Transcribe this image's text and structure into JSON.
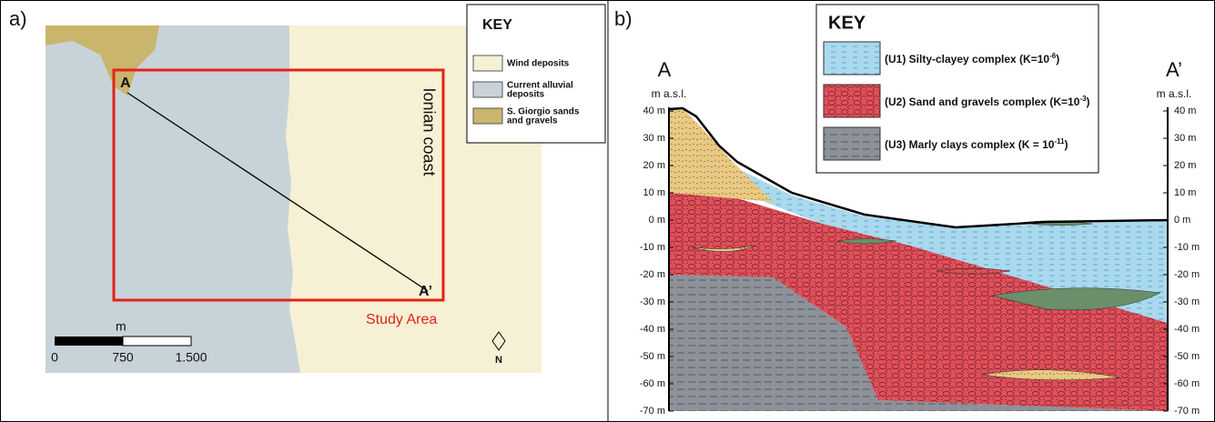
{
  "panel_a": {
    "label": "a)",
    "key": {
      "title": "KEY",
      "items": [
        [
          "Wind deposits"
        ],
        [
          "Current alluvial",
          "deposits"
        ],
        [
          "S. Giorgio sands",
          "and gravels"
        ]
      ]
    },
    "point_start": "A",
    "point_end": "A’",
    "coast_label": "Ionian coast",
    "area_label": "Study Area",
    "scale": {
      "unit": "m",
      "ticks": [
        "0",
        "750",
        "1.500"
      ]
    },
    "north": "N"
  },
  "panel_b": {
    "label": "b)",
    "key": {
      "title": "KEY",
      "items": [
        {
          "text": "(U1) Silty-clayey complex (K=10",
          "sup": "-6",
          "end": ")"
        },
        {
          "text": "(U2) Sand and gravels complex (K=10",
          "sup": "-3",
          "end": ")"
        },
        {
          "text": "(U3) Marly clays complex (K = 10",
          "sup": "-11",
          "end": ")"
        }
      ]
    },
    "point_start": "A",
    "point_end": "A’",
    "axis_unit": "m a.s.l.",
    "ticks": [
      "40 m",
      "30 m",
      "20 m",
      "10 m",
      "0 m",
      "-10 m",
      "-20 m",
      "-30 m",
      "-40 m",
      "-50 m",
      "-60 m",
      "-70 m"
    ]
  }
}
